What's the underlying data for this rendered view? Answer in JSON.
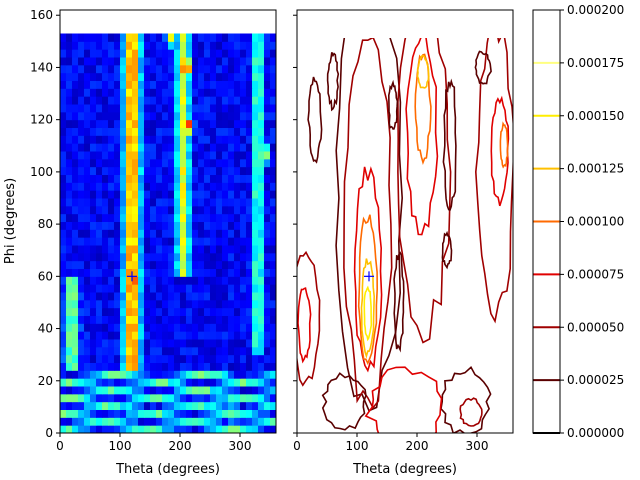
{
  "chart_data": [
    {
      "type": "heatmap",
      "panel": "left",
      "colormap": "jet",
      "xlabel": "Theta (degrees)",
      "ylabel": "Phi (degrees)",
      "xlim": [
        0,
        360
      ],
      "ylim": [
        0,
        162
      ],
      "x_range_data": [
        0,
        360
      ],
      "y_range_data": [
        0,
        153
      ],
      "xticks": [
        0,
        100,
        200,
        300
      ],
      "yticks": [
        0,
        20,
        40,
        60,
        80,
        100,
        120,
        140,
        160
      ],
      "theta_step": 10,
      "phi_step": 3,
      "marker": {
        "theta": 120,
        "phi": 60,
        "symbol": "+",
        "color": "#0000ff"
      },
      "bands": [
        {
          "theta_center": 120,
          "theta_width": 32,
          "phi_min": 25,
          "phi_max": 153,
          "intensity": 0.75
        },
        {
          "theta_center": 205,
          "theta_width": 26,
          "phi_min": 60,
          "phi_max": 153,
          "intensity": 0.6
        },
        {
          "theta_center": 330,
          "theta_width": 26,
          "phi_min": 30,
          "phi_max": 153,
          "intensity": 0.45
        },
        {
          "theta_center": 20,
          "theta_width": 30,
          "phi_min": 25,
          "phi_max": 60,
          "intensity": 0.5
        }
      ],
      "hotspots": [
        {
          "theta": 120,
          "phi": 45,
          "value": 0.95
        },
        {
          "theta": 125,
          "phi": 60,
          "value": 0.85
        },
        {
          "theta": 210,
          "phi": 140,
          "value": 0.98
        },
        {
          "theta": 215,
          "phi": 118,
          "value": 0.82
        },
        {
          "theta": 340,
          "phi": 107,
          "value": 0.72
        },
        {
          "theta": 290,
          "phi": 8,
          "value": 0.6
        },
        {
          "theta": 185,
          "phi": 152,
          "value": 0.65
        }
      ]
    },
    {
      "type": "contour",
      "panel": "right",
      "xlabel": "Theta (degrees)",
      "xlim": [
        0,
        360
      ],
      "ylim": [
        0,
        162
      ],
      "xticks": [
        0,
        100,
        200,
        300
      ],
      "marker": {
        "theta": 120,
        "phi": 60,
        "symbol": "+",
        "color": "#0000ff"
      },
      "levels": [
        2.5e-05,
        5e-05,
        7.5e-05,
        0.0001,
        0.000125,
        0.00015,
        0.000175
      ],
      "level_colors": [
        "#5a0000",
        "#a00000",
        "#e00000",
        "#ff6a00",
        "#ffc000",
        "#ffee00",
        "#ffff80"
      ]
    }
  ],
  "colorbar": {
    "ticks": [
      "0.000000",
      "0.000025",
      "0.000050",
      "0.000075",
      "0.000100",
      "0.000125",
      "0.000150",
      "0.000175",
      "0.000200"
    ],
    "line_levels": [
      0.0,
      2.5e-05,
      5e-05,
      7.5e-05,
      0.0001,
      0.000125,
      0.00015,
      0.000175
    ],
    "line_colors": [
      "#000000",
      "#5a0000",
      "#a00000",
      "#e00000",
      "#ff6a00",
      "#ffc000",
      "#ffee00",
      "#ffff80"
    ],
    "max": 0.0002
  }
}
